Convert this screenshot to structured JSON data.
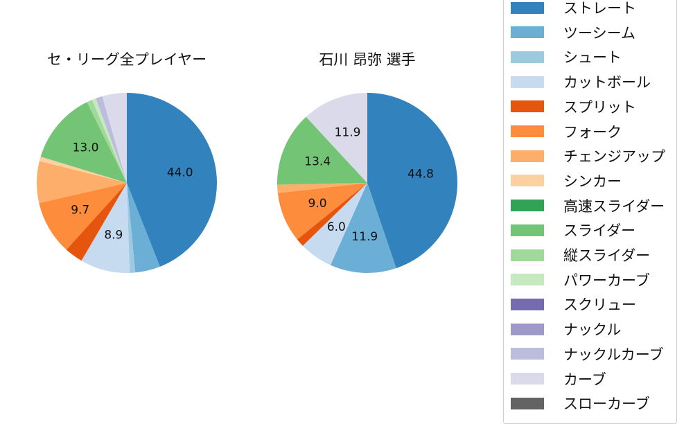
{
  "chart_data": [
    {
      "type": "pie",
      "title": "セ・リーグ全プレイヤー",
      "start_angle": "top, clockwise",
      "categories": [
        "ストレート",
        "ツーシーム",
        "シュート",
        "カットボール",
        "スプリット",
        "フォーク",
        "チェンジアップ",
        "シンカー",
        "高速スライダー",
        "スライダー",
        "縦スライダー",
        "パワーカーブ",
        "スクリュー",
        "ナックル",
        "ナックルカーブ",
        "カーブ",
        "スローカーブ"
      ],
      "values": [
        44.0,
        4.5,
        1.0,
        8.9,
        3.3,
        9.7,
        7.5,
        0.8,
        0.0,
        13.0,
        1.0,
        0.7,
        0.0,
        0.0,
        1.2,
        4.4,
        0.0
      ],
      "labels_shown": {
        "ストレート": "44.0",
        "カットボール": "8.9",
        "フォーク": "9.7",
        "スライダー": "13.0"
      }
    },
    {
      "type": "pie",
      "title": "石川 昂弥  選手",
      "start_angle": "top, clockwise",
      "categories": [
        "ストレート",
        "ツーシーム",
        "シュート",
        "カットボール",
        "スプリット",
        "フォーク",
        "チェンジアップ",
        "シンカー",
        "高速スライダー",
        "スライダー",
        "縦スライダー",
        "パワーカーブ",
        "スクリュー",
        "ナックル",
        "ナックルカーブ",
        "カーブ",
        "スローカーブ"
      ],
      "values": [
        44.8,
        11.9,
        0.0,
        6.0,
        1.5,
        9.0,
        1.5,
        0.0,
        0.0,
        13.4,
        0.0,
        0.0,
        0.0,
        0.0,
        0.0,
        11.9,
        0.0
      ],
      "labels_shown": {
        "ストレート": "44.8",
        "ツーシーム": "11.9",
        "カットボール": "6.0",
        "フォーク": "9.0",
        "スライダー": "13.4",
        "カーブ": "11.9"
      }
    }
  ],
  "charts": [
    {
      "title": "セ・リーグ全プレイヤー"
    },
    {
      "title": "石川 昂弥  選手"
    }
  ],
  "legend": {
    "items": [
      {
        "label": "ストレート",
        "color": "#3182bd"
      },
      {
        "label": "ツーシーム",
        "color": "#6baed6"
      },
      {
        "label": "シュート",
        "color": "#9ecae1"
      },
      {
        "label": "カットボール",
        "color": "#c6dbef"
      },
      {
        "label": "スプリット",
        "color": "#e6550d"
      },
      {
        "label": "フォーク",
        "color": "#fd8d3c"
      },
      {
        "label": "チェンジアップ",
        "color": "#fdae6b"
      },
      {
        "label": "シンカー",
        "color": "#fdd0a2"
      },
      {
        "label": "高速スライダー",
        "color": "#31a354"
      },
      {
        "label": "スライダー",
        "color": "#74c476"
      },
      {
        "label": "縦スライダー",
        "color": "#a1d99b"
      },
      {
        "label": "パワーカーブ",
        "color": "#c7e9c0"
      },
      {
        "label": "スクリュー",
        "color": "#756bb1"
      },
      {
        "label": "ナックル",
        "color": "#9e9ac8"
      },
      {
        "label": "ナックルカーブ",
        "color": "#bcbddc"
      },
      {
        "label": "カーブ",
        "color": "#dadaeb"
      },
      {
        "label": "スローカーブ",
        "color": "#636363"
      }
    ]
  }
}
